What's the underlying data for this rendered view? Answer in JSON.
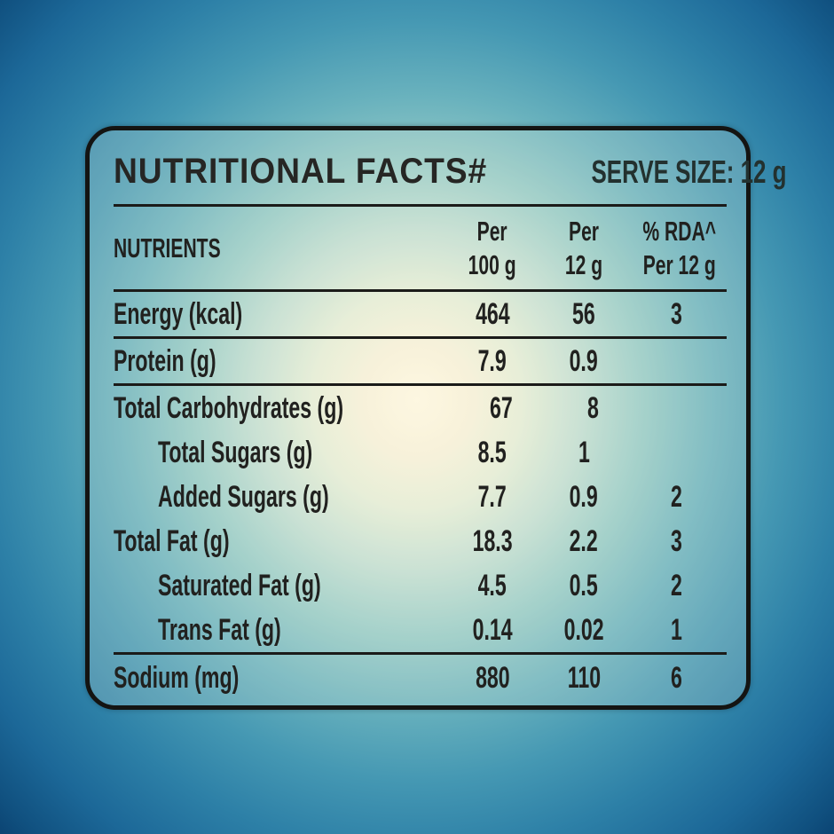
{
  "panel": {
    "title": "NUTRITIONAL FACTS#",
    "serve_size": "SERVE SIZE: 12 g",
    "header": {
      "nutrients": "NUTRIENTS",
      "per100": [
        "Per",
        "100 g"
      ],
      "per12": [
        "Per",
        "12 g"
      ],
      "rda": [
        "% RDA^",
        "Per 12 g"
      ]
    },
    "rows": [
      {
        "label": "Energy (kcal)",
        "per_100g": "464",
        "per_12g": "56",
        "rda_per_12g": "3"
      },
      {
        "label": "Protein (g)",
        "per_100g": "7.9",
        "per_12g": "0.9",
        "rda_per_12g": ""
      },
      {
        "label": "Total Carbohydrates (g)",
        "per_100g": "67",
        "per_12g": "8",
        "rda_per_12g": ""
      },
      {
        "label": "Total Sugars (g)",
        "per_100g": "8.5",
        "per_12g": "1",
        "rda_per_12g": ""
      },
      {
        "label": "Added Sugars (g)",
        "per_100g": "7.7",
        "per_12g": "0.9",
        "rda_per_12g": "2"
      },
      {
        "label": "Total Fat (g)",
        "per_100g": "18.3",
        "per_12g": "2.2",
        "rda_per_12g": "3"
      },
      {
        "label": "Saturated Fat (g)",
        "per_100g": "4.5",
        "per_12g": "0.5",
        "rda_per_12g": "2"
      },
      {
        "label": "Trans Fat (g)",
        "per_100g": "0.14",
        "per_12g": "0.02",
        "rda_per_12g": "1"
      },
      {
        "label": "Sodium (mg)",
        "per_100g": "880",
        "per_12g": "110",
        "rda_per_12g": "6"
      }
    ],
    "colors": {
      "background_center_glow": "#fdf7e1",
      "background_edge_blue": "#0b4473",
      "panel_border": "#141412",
      "text": "#21211f"
    }
  }
}
